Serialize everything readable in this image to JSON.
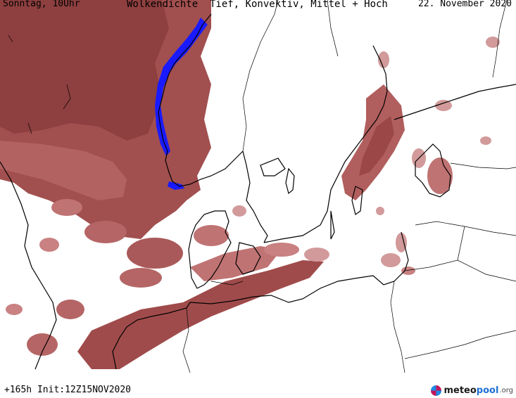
{
  "header": {
    "left": "Sonntag, 10Uhr",
    "center": "Wolkendichte  Tief, Konvektiv, Mittel + Hoch",
    "right": "22. November 2020"
  },
  "footer": {
    "run_info": "+165h Init:12Z15NOV2020"
  },
  "logo": {
    "word1": "meteo",
    "word2": "pool",
    "suffix": ".org"
  },
  "colors": {
    "cloud_dense": "#8e3f3f",
    "cloud_medium": "#a95959",
    "cloud_light": "#d29a9a",
    "cloud_faint": "#ecc7c7",
    "precip_blue": "#1a1aff",
    "coast": "#000000",
    "background": "#ffffff"
  }
}
